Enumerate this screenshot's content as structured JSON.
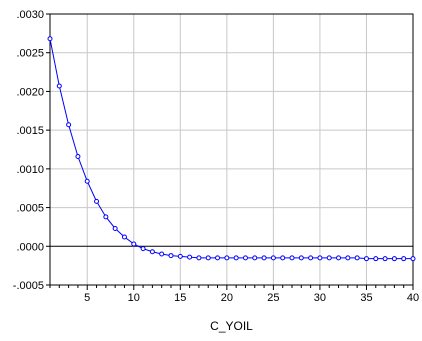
{
  "chart_data": {
    "type": "line",
    "xlabel": "C_YOIL",
    "ylabel": "",
    "x": [
      1,
      2,
      3,
      4,
      5,
      6,
      7,
      8,
      9,
      10,
      11,
      12,
      13,
      14,
      15,
      16,
      17,
      18,
      19,
      20,
      21,
      22,
      23,
      24,
      25,
      26,
      27,
      28,
      29,
      30,
      31,
      32,
      33,
      34,
      35,
      36,
      37,
      38,
      39,
      40
    ],
    "series": [
      {
        "values": [
          0.00268,
          0.00207,
          0.00157,
          0.00116,
          0.00084,
          0.00058,
          0.00038,
          0.00023,
          0.00012,
          3e-05,
          -3e-05,
          -7e-05,
          -0.0001,
          -0.00012,
          -0.00013,
          -0.00014,
          -0.00015,
          -0.00015,
          -0.00015,
          -0.00015,
          -0.00015,
          -0.00015,
          -0.00015,
          -0.00015,
          -0.00015,
          -0.00015,
          -0.00015,
          -0.00015,
          -0.00015,
          -0.00015,
          -0.00015,
          -0.00015,
          -0.00015,
          -0.00015,
          -0.00016,
          -0.00016,
          -0.00016,
          -0.00016,
          -0.00016,
          -0.00016
        ]
      }
    ],
    "xlim": [
      1,
      40
    ],
    "ylim": [
      -0.0005,
      0.003
    ],
    "x_ticks": [
      5,
      10,
      15,
      20,
      25,
      30,
      35,
      40
    ],
    "x_tick_labels": [
      "5",
      "10",
      "15",
      "20",
      "25",
      "30",
      "35",
      "40"
    ],
    "y_ticks": [
      -0.0005,
      0,
      0.0005,
      0.001,
      0.0015,
      0.002,
      0.0025,
      0.003
    ],
    "y_tick_labels": [
      "-.0005",
      ".0000",
      ".0005",
      ".0010",
      ".0015",
      ".0020",
      ".0025",
      ".0030"
    ],
    "grid": true,
    "zero_line": true,
    "marker": "hollow-circle",
    "colors": {
      "line": "#0000ff",
      "grid": "#c8c8c8",
      "zero_line": "#000000",
      "frame": "#000000"
    }
  }
}
